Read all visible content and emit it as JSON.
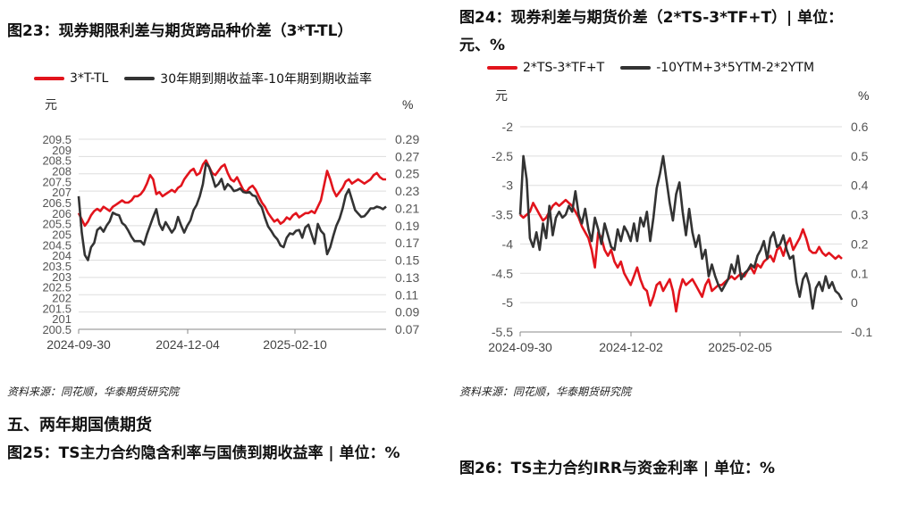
{
  "chart_data": [
    {
      "type": "line",
      "title": "图23：现券期限利差与期货跨品种价差（3*T-TL）",
      "left_unit": "元",
      "right_unit": "%",
      "left_ylim": [
        200.5,
        209.5
      ],
      "left_ticks": [
        "209.5",
        "209",
        "208.5",
        "208",
        "207.5",
        "207",
        "206.5",
        "206",
        "205.5",
        "205",
        "204.5",
        "204",
        "203.5",
        "203",
        "202.5",
        "202",
        "201.5",
        "201",
        "200.5"
      ],
      "right_ylim": [
        0.07,
        0.29
      ],
      "right_ticks": [
        "0.29",
        "0.27",
        "0.25",
        "0.23",
        "0.21",
        "0.19",
        "0.17",
        "0.15",
        "0.13",
        "0.11",
        "0.09",
        "0.07"
      ],
      "x_ticks": [
        "2024-09-30",
        "2024-12-04",
        "2025-02-10"
      ],
      "n_points": 100,
      "series": [
        {
          "name": "3*T-TL",
          "color": "#e2141c",
          "axis": "left",
          "values": [
            206.0,
            205.7,
            205.4,
            205.6,
            205.9,
            206.1,
            206.2,
            206.1,
            206.3,
            206.2,
            206.1,
            206.3,
            206.4,
            206.5,
            206.6,
            206.5,
            206.5,
            206.6,
            206.8,
            206.8,
            206.9,
            207.1,
            207.4,
            207.8,
            207.6,
            206.9,
            207.0,
            206.8,
            206.9,
            207.0,
            207.1,
            207.0,
            207.2,
            207.3,
            207.6,
            207.8,
            208.0,
            208.1,
            207.8,
            207.9,
            208.3,
            208.5,
            208.2,
            207.9,
            207.8,
            208.0,
            208.2,
            208.3,
            207.9,
            207.6,
            207.5,
            207.7,
            207.4,
            207.1,
            207.0,
            207.2,
            207.3,
            207.1,
            206.8,
            206.5,
            206.3,
            206.0,
            205.8,
            205.6,
            205.7,
            205.5,
            205.6,
            205.8,
            205.7,
            205.9,
            206.0,
            205.8,
            205.9,
            206.0,
            206.0,
            206.1,
            206.0,
            206.3,
            206.6,
            207.3,
            208.0,
            207.6,
            207.1,
            206.8,
            207.0,
            207.2,
            207.5,
            207.6,
            207.4,
            207.5,
            207.6,
            207.5,
            207.4,
            207.5,
            207.6,
            207.8,
            207.9,
            207.7,
            207.6,
            207.6
          ]
        },
        {
          "name": "30年期到期收益率-10年期到期收益率",
          "color": "#333333",
          "axis": "right",
          "values": [
            0.224,
            0.182,
            0.156,
            0.15,
            0.165,
            0.17,
            0.185,
            0.188,
            0.183,
            0.19,
            0.195,
            0.205,
            0.203,
            0.202,
            0.193,
            0.19,
            0.184,
            0.177,
            0.172,
            0.172,
            0.172,
            0.168,
            0.18,
            0.19,
            0.2,
            0.209,
            0.192,
            0.185,
            0.194,
            0.188,
            0.182,
            0.187,
            0.2,
            0.19,
            0.182,
            0.19,
            0.196,
            0.208,
            0.214,
            0.224,
            0.238,
            0.262,
            0.258,
            0.247,
            0.235,
            0.238,
            0.244,
            0.232,
            0.238,
            0.235,
            0.23,
            0.231,
            0.233,
            0.229,
            0.228,
            0.229,
            0.225,
            0.224,
            0.216,
            0.211,
            0.199,
            0.189,
            0.184,
            0.178,
            0.174,
            0.167,
            0.165,
            0.176,
            0.181,
            0.18,
            0.184,
            0.185,
            0.176,
            0.188,
            0.191,
            0.18,
            0.169,
            0.192,
            0.184,
            0.18,
            0.157,
            0.165,
            0.178,
            0.19,
            0.198,
            0.21,
            0.225,
            0.232,
            0.22,
            0.208,
            0.204,
            0.2,
            0.201,
            0.205,
            0.21,
            0.21,
            0.212,
            0.211,
            0.209,
            0.212
          ]
        }
      ],
      "legend_labels": [
        "3*T-TL",
        "30年期到期收益率-10年期到期收益率"
      ]
    },
    {
      "type": "line",
      "title_line1": "图24：现券利差与期货价差（2*TS-3*TF+T）| 单位：",
      "title_line2": "元、%",
      "left_unit": "元",
      "right_unit": "%",
      "left_ylim": [
        -5.5,
        -2.0
      ],
      "left_ticks": [
        "-2",
        "-2.5",
        "-3",
        "-3.5",
        "-4",
        "-4.5",
        "-5",
        "-5.5"
      ],
      "right_ylim": [
        -0.1,
        0.6
      ],
      "right_ticks": [
        "0.6",
        "0.5",
        "0.4",
        "0.3",
        "0.2",
        "0.1",
        "0",
        "-0.1"
      ],
      "x_ticks": [
        "2024-09-30",
        "2024-12-02",
        "2025-02-05"
      ],
      "n_points": 100,
      "series": [
        {
          "name": "2*TS-3*TF+T",
          "color": "#e2141c",
          "axis": "left",
          "values": [
            -3.5,
            -3.55,
            -3.5,
            -3.45,
            -3.3,
            -3.4,
            -3.5,
            -3.6,
            -3.55,
            -3.45,
            -3.35,
            -3.3,
            -3.35,
            -3.3,
            -3.25,
            -3.3,
            -3.35,
            -3.45,
            -3.55,
            -3.7,
            -3.8,
            -3.9,
            -4.1,
            -4.4,
            -3.8,
            -3.9,
            -4.1,
            -4.2,
            -4.1,
            -4.3,
            -4.4,
            -4.3,
            -4.5,
            -4.6,
            -4.7,
            -4.55,
            -4.4,
            -4.6,
            -4.75,
            -4.8,
            -5.05,
            -4.9,
            -4.7,
            -4.65,
            -4.8,
            -4.7,
            -4.6,
            -4.8,
            -5.15,
            -4.8,
            -4.6,
            -4.7,
            -4.65,
            -4.6,
            -4.7,
            -4.8,
            -4.9,
            -4.7,
            -4.6,
            -4.8,
            -4.75,
            -4.7,
            -4.7,
            -4.65,
            -4.6,
            -4.55,
            -4.6,
            -4.55,
            -4.5,
            -4.55,
            -4.45,
            -4.4,
            -4.5,
            -4.35,
            -4.4,
            -4.3,
            -4.25,
            -4.2,
            -4.3,
            -4.1,
            -4.05,
            -4.2,
            -4.0,
            -3.9,
            -4.1,
            -4.0,
            -3.9,
            -3.75,
            -3.9,
            -4.1,
            -4.15,
            -4.15,
            -4.05,
            -4.15,
            -4.2,
            -4.15,
            -4.2,
            -4.25,
            -4.2,
            -4.25
          ]
        },
        {
          "name": "-10YTM+3*5YTM-2*2YTM",
          "color": "#333333",
          "axis": "right",
          "values": [
            0.3,
            0.5,
            0.42,
            0.22,
            0.19,
            0.24,
            0.18,
            0.27,
            0.22,
            0.33,
            0.23,
            0.29,
            0.31,
            0.29,
            0.3,
            0.33,
            0.31,
            0.38,
            0.3,
            0.27,
            0.32,
            0.25,
            0.21,
            0.29,
            0.25,
            0.2,
            0.27,
            0.23,
            0.19,
            0.18,
            0.25,
            0.21,
            0.26,
            0.24,
            0.21,
            0.27,
            0.21,
            0.29,
            0.26,
            0.31,
            0.21,
            0.29,
            0.39,
            0.44,
            0.5,
            0.42,
            0.34,
            0.28,
            0.37,
            0.41,
            0.31,
            0.23,
            0.32,
            0.24,
            0.19,
            0.23,
            0.15,
            0.18,
            0.09,
            0.13,
            0.09,
            0.06,
            0.04,
            0.06,
            0.08,
            0.13,
            0.1,
            0.16,
            0.08,
            0.1,
            0.11,
            0.13,
            0.12,
            0.16,
            0.18,
            0.21,
            0.15,
            0.22,
            0.24,
            0.19,
            0.2,
            0.23,
            0.18,
            0.15,
            0.16,
            0.07,
            0.02,
            0.08,
            0.1,
            0.06,
            -0.02,
            0.05,
            0.07,
            0.04,
            0.09,
            0.05,
            0.07,
            0.04,
            0.03,
            0.01
          ]
        }
      ],
      "legend_labels": [
        "2*TS-3*TF+T",
        "-10YTM+3*5YTM-2*2YTM"
      ]
    }
  ],
  "source_text_left": "资料来源：同花顺，华泰期货研究院",
  "source_text_right": "资料来源：同花顺，华泰期货研究院",
  "section_heading": "五、两年期国债期货",
  "next_title_left": "图25：TS主力合约隐含利率与国债到期收益率 | 单位：%",
  "next_title_right": "图26：TS主力合约IRR与资金利率 | 单位：%"
}
